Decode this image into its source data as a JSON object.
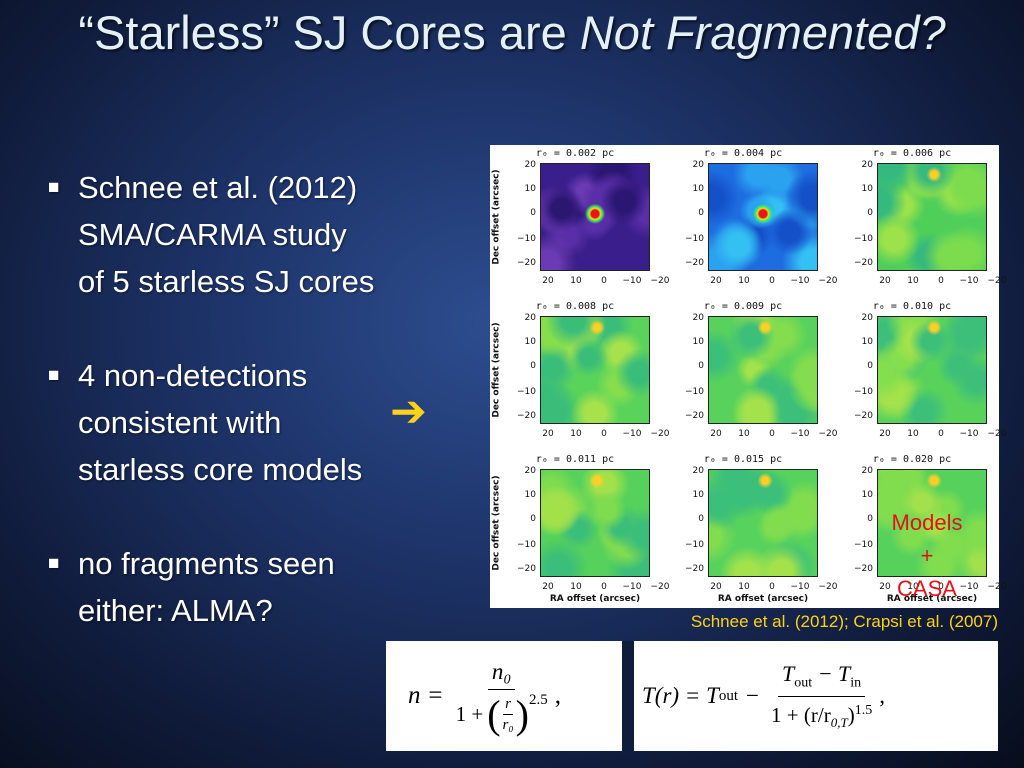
{
  "title": {
    "main": "“Starless” SJ Cores are ",
    "italic": "Not Fragmented?"
  },
  "bullets": [
    {
      "marker": "■",
      "lines": [
        "Schnee et al. (2012)",
        "SMA/CARMA study",
        "of 5 starless SJ cores"
      ]
    },
    {
      "marker": "■",
      "lines": [
        "4 non-detections",
        "consistent with",
        "starless core models"
      ]
    },
    {
      "marker": "■",
      "lines": [
        "no fragments seen",
        "either: ALMA?"
      ]
    }
  ],
  "arrow_icon": "right-arrow-icon",
  "figure": {
    "panels": [
      {
        "r0": "r₀ = 0.002 pc"
      },
      {
        "r0": "r₀ = 0.004 pc"
      },
      {
        "r0": "r₀ = 0.006 pc"
      },
      {
        "r0": "r₀ = 0.008 pc"
      },
      {
        "r0": "r₀ = 0.009 pc"
      },
      {
        "r0": "r₀ = 0.010 pc"
      },
      {
        "r0": "r₀ = 0.011 pc"
      },
      {
        "r0": "r₀ = 0.015 pc"
      },
      {
        "r0": "r₀ = 0.020 pc"
      }
    ],
    "y_ticks": [
      "20",
      "10",
      "0",
      "−10",
      "−20"
    ],
    "x_ticks": [
      "20",
      "10",
      "0",
      "−10",
      "−20"
    ],
    "y_label": "Dec offset (arcsec)",
    "x_label": "RA offset (arcsec)",
    "overlay": {
      "line1": "Models",
      "line2": "+",
      "line3": "CASA"
    }
  },
  "citation": "Schnee et al. (2012); Crapsi et al. (2007)",
  "equations": {
    "n_lhs": "n =",
    "n_num": "n₀",
    "n_den_pre": "1 +",
    "n_r": "r",
    "n_r0": "r₀",
    "n_exp": "2.5",
    "t_lhs": "T(r) = T",
    "t_lhs_sub": "out",
    "t_minus": "−",
    "t_num_a": "T",
    "t_num_a_sub": "out",
    "t_num_minus": " − T",
    "t_num_b_sub": "in",
    "t_den": "1 + (r/r",
    "t_den_sub": "0,T",
    "t_den_close": ")",
    "t_den_exp": "1.5",
    "comma": ","
  },
  "colors": {
    "title": "#e3f1f6",
    "arrow": "#ffd21a",
    "citation": "#ffd21a",
    "overlay_text": "#e3121a"
  }
}
